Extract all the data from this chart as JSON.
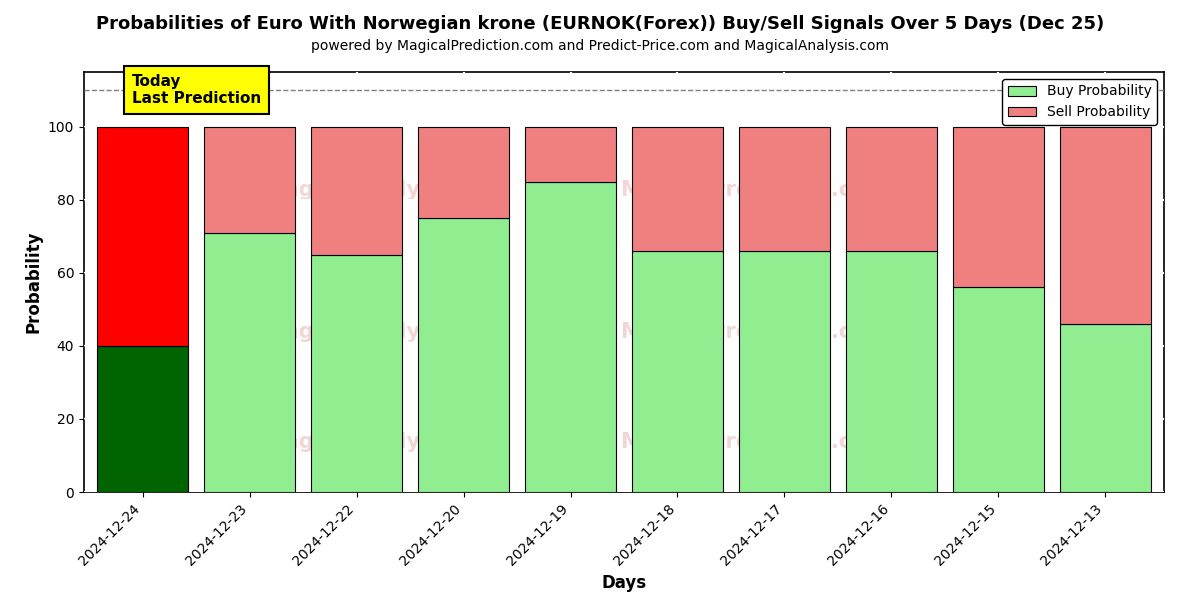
{
  "title": "Probabilities of Euro With Norwegian krone (EURNOK(Forex)) Buy/Sell Signals Over 5 Days (Dec 25)",
  "subtitle": "powered by MagicalPrediction.com and Predict-Price.com and MagicalAnalysis.com",
  "xlabel": "Days",
  "ylabel": "Probability",
  "categories": [
    "2024-12-24",
    "2024-12-23",
    "2024-12-22",
    "2024-12-20",
    "2024-12-19",
    "2024-12-18",
    "2024-12-17",
    "2024-12-16",
    "2024-12-15",
    "2024-12-13"
  ],
  "buy_values": [
    40,
    71,
    65,
    75,
    85,
    66,
    66,
    66,
    56,
    46
  ],
  "sell_values": [
    60,
    29,
    35,
    25,
    15,
    34,
    34,
    34,
    44,
    54
  ],
  "buy_colors": [
    "#006400",
    "#90EE90",
    "#90EE90",
    "#90EE90",
    "#90EE90",
    "#90EE90",
    "#90EE90",
    "#90EE90",
    "#90EE90",
    "#90EE90"
  ],
  "sell_colors": [
    "#FF0000",
    "#F08080",
    "#F08080",
    "#F08080",
    "#F08080",
    "#F08080",
    "#F08080",
    "#F08080",
    "#F08080",
    "#F08080"
  ],
  "today_label": "Today\nLast Prediction",
  "today_bg": "#FFFF00",
  "legend_buy_color": "#90EE90",
  "legend_sell_color": "#F08080",
  "legend_buy_label": "Buy Probability",
  "legend_sell_label": "Sell Probability",
  "ylim": [
    0,
    115
  ],
  "yticks": [
    0,
    20,
    40,
    60,
    80,
    100
  ],
  "dashed_line_y": 110,
  "background_color": "#ffffff",
  "plot_bg_color": "#ffffff",
  "grid_color": "#ffffff",
  "bar_width": 0.85
}
